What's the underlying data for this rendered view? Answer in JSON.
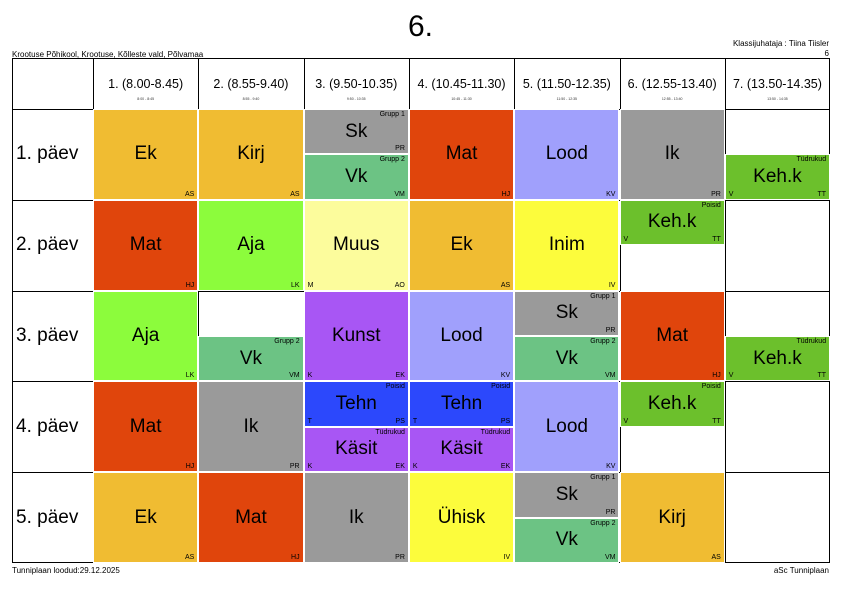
{
  "header": {
    "title": "6.",
    "school": "Krootuse Põhikool, Krootuse, Kõlleste vald, Põlvamaa",
    "teacher_line": "Klassijuhataja : Tiina Tiisler",
    "class_code": "6"
  },
  "footer": {
    "created": "Tunniplaan loodud:29.12.2025",
    "brand": "aSc Tunniplaan"
  },
  "periods": [
    {
      "label": "1. (8.00-8.45)",
      "sub": "8:00 - 8:45"
    },
    {
      "label": "2. (8.55-9.40)",
      "sub": "8:55 - 9:40"
    },
    {
      "label": "3. (9.50-10.35)",
      "sub": "9:50 - 10:35"
    },
    {
      "label": "4. (10.45-11.30)",
      "sub": "10:45 - 11:30"
    },
    {
      "label": "5. (11.50-12.35)",
      "sub": "11:50 - 12:35"
    },
    {
      "label": "6. (12.55-13.40)",
      "sub": "12:55 - 13:40"
    },
    {
      "label": "7. (13.50-14.35)",
      "sub": "13:50 - 14:35"
    }
  ],
  "days": [
    "1. päev",
    "2. päev",
    "3. päev",
    "4. päev",
    "5. päev"
  ],
  "colors": {
    "ek": "#f0bc32",
    "kirj": "#f0bc32",
    "sk": "#9a9a9a",
    "ik": "#9a9a9a",
    "vk": "#6cc384",
    "mat": "#e0450c",
    "lood": "#a0a0fc",
    "kehk": "#6cc02c",
    "aja": "#8cfc3c",
    "muus": "#fcfc9c",
    "inim": "#fcfc3c",
    "kunst": "#a856f4",
    "kasit": "#a856f4",
    "tehn": "#2c48fc",
    "uhisk": "#fcfc3c"
  },
  "lessons": [
    {
      "day": 0,
      "period": 0,
      "slot": "full",
      "subject": "Ek",
      "teacher": "AS",
      "color": "ek"
    },
    {
      "day": 0,
      "period": 1,
      "slot": "full",
      "subject": "Kirj",
      "teacher": "AS",
      "color": "kirj"
    },
    {
      "day": 0,
      "period": 2,
      "slot": "top",
      "subject": "Sk",
      "group": "Grupp 1",
      "teacher": "PR",
      "color": "sk"
    },
    {
      "day": 0,
      "period": 2,
      "slot": "bottom",
      "subject": "Vk",
      "group": "Grupp 2",
      "teacher": "VM",
      "color": "vk"
    },
    {
      "day": 0,
      "period": 3,
      "slot": "full",
      "subject": "Mat",
      "teacher": "HJ",
      "color": "mat"
    },
    {
      "day": 0,
      "period": 4,
      "slot": "full",
      "subject": "Lood",
      "teacher": "KV",
      "color": "lood"
    },
    {
      "day": 0,
      "period": 5,
      "slot": "full",
      "subject": "Ik",
      "teacher": "PR",
      "color": "ik"
    },
    {
      "day": 0,
      "period": 6,
      "slot": "bottom",
      "subject": "Keh.k",
      "group": "Tüdrukud",
      "teacher": "TT",
      "room": "V",
      "color": "kehk"
    },
    {
      "day": 1,
      "period": 0,
      "slot": "full",
      "subject": "Mat",
      "teacher": "HJ",
      "color": "mat"
    },
    {
      "day": 1,
      "period": 1,
      "slot": "full",
      "subject": "Aja",
      "teacher": "LK",
      "color": "aja"
    },
    {
      "day": 1,
      "period": 2,
      "slot": "full",
      "subject": "Muus",
      "teacher": "AO",
      "room": "M",
      "color": "muus"
    },
    {
      "day": 1,
      "period": 3,
      "slot": "full",
      "subject": "Ek",
      "teacher": "AS",
      "color": "ek"
    },
    {
      "day": 1,
      "period": 4,
      "slot": "full",
      "subject": "Inim",
      "teacher": "IV",
      "color": "inim"
    },
    {
      "day": 1,
      "period": 5,
      "slot": "top",
      "subject": "Keh.k",
      "group": "Poisid",
      "teacher": "TT",
      "room": "V",
      "color": "kehk"
    },
    {
      "day": 2,
      "period": 0,
      "slot": "full",
      "subject": "Aja",
      "teacher": "LK",
      "color": "aja"
    },
    {
      "day": 2,
      "period": 1,
      "slot": "bottom",
      "subject": "Vk",
      "group": "Grupp 2",
      "teacher": "VM",
      "color": "vk"
    },
    {
      "day": 2,
      "period": 2,
      "slot": "full",
      "subject": "Kunst",
      "teacher": "EK",
      "room": "K",
      "color": "kunst"
    },
    {
      "day": 2,
      "period": 3,
      "slot": "full",
      "subject": "Lood",
      "teacher": "KV",
      "color": "lood"
    },
    {
      "day": 2,
      "period": 4,
      "slot": "top",
      "subject": "Sk",
      "group": "Grupp 1",
      "teacher": "PR",
      "color": "sk"
    },
    {
      "day": 2,
      "period": 4,
      "slot": "bottom",
      "subject": "Vk",
      "group": "Grupp 2",
      "teacher": "VM",
      "color": "vk"
    },
    {
      "day": 2,
      "period": 5,
      "slot": "full",
      "subject": "Mat",
      "teacher": "HJ",
      "color": "mat"
    },
    {
      "day": 2,
      "period": 6,
      "slot": "bottom",
      "subject": "Keh.k",
      "group": "Tüdrukud",
      "teacher": "TT",
      "room": "V",
      "color": "kehk"
    },
    {
      "day": 3,
      "period": 0,
      "slot": "full",
      "subject": "Mat",
      "teacher": "HJ",
      "color": "mat"
    },
    {
      "day": 3,
      "period": 1,
      "slot": "full",
      "subject": "Ik",
      "teacher": "PR",
      "color": "ik"
    },
    {
      "day": 3,
      "period": 2,
      "slot": "top",
      "subject": "Tehn",
      "group": "Poisid",
      "teacher": "PS",
      "room": "T",
      "color": "tehn"
    },
    {
      "day": 3,
      "period": 2,
      "slot": "bottom",
      "subject": "Käsit",
      "group": "Tüdrukud",
      "teacher": "EK",
      "room": "K",
      "color": "kasit"
    },
    {
      "day": 3,
      "period": 3,
      "slot": "top",
      "subject": "Tehn",
      "group": "Poisid",
      "teacher": "PS",
      "room": "T",
      "color": "tehn"
    },
    {
      "day": 3,
      "period": 3,
      "slot": "bottom",
      "subject": "Käsit",
      "group": "Tüdrukud",
      "teacher": "EK",
      "room": "K",
      "color": "kasit"
    },
    {
      "day": 3,
      "period": 4,
      "slot": "full",
      "subject": "Lood",
      "teacher": "KV",
      "color": "lood"
    },
    {
      "day": 3,
      "period": 5,
      "slot": "top",
      "subject": "Keh.k",
      "group": "Poisid",
      "teacher": "TT",
      "room": "V",
      "color": "kehk"
    },
    {
      "day": 4,
      "period": 0,
      "slot": "full",
      "subject": "Ek",
      "teacher": "AS",
      "color": "ek"
    },
    {
      "day": 4,
      "period": 1,
      "slot": "full",
      "subject": "Mat",
      "teacher": "HJ",
      "color": "mat"
    },
    {
      "day": 4,
      "period": 2,
      "slot": "full",
      "subject": "Ik",
      "teacher": "PR",
      "color": "ik"
    },
    {
      "day": 4,
      "period": 3,
      "slot": "full",
      "subject": "Ühisk",
      "teacher": "IV",
      "color": "uhisk"
    },
    {
      "day": 4,
      "period": 4,
      "slot": "top",
      "subject": "Sk",
      "group": "Grupp 1",
      "teacher": "PR",
      "color": "sk"
    },
    {
      "day": 4,
      "period": 4,
      "slot": "bottom",
      "subject": "Vk",
      "group": "Grupp 2",
      "teacher": "VM",
      "color": "vk"
    },
    {
      "day": 4,
      "period": 5,
      "slot": "full",
      "subject": "Kirj",
      "teacher": "AS",
      "color": "kirj"
    }
  ]
}
